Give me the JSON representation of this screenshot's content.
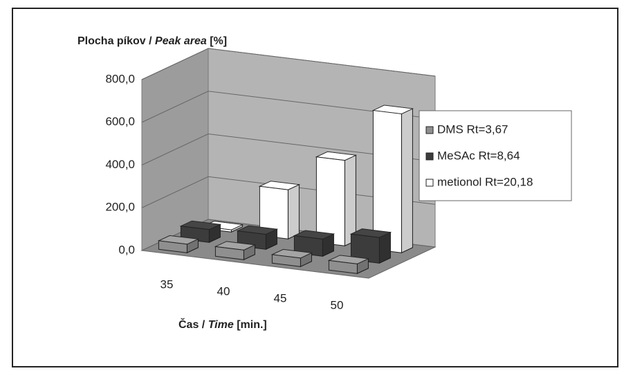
{
  "chart_data": {
    "type": "bar3d",
    "y_label": [
      "Plocha píkov / ",
      "Peak area",
      " [%]"
    ],
    "x_label": [
      "Čas / ",
      "Time",
      " [min.]"
    ],
    "categories": [
      "35",
      "40",
      "45",
      "50"
    ],
    "series": [
      {
        "name": "DMS Rt=3,67",
        "color": "#8f8f8f",
        "values": [
          40,
          45,
          40,
          45
        ]
      },
      {
        "name": "MeSAc Rt=8,64",
        "color": "#3c3c3c",
        "values": [
          60,
          70,
          80,
          120
        ]
      },
      {
        "name": "metionol Rt=20,18",
        "color": "#ffffff",
        "values": [
          10,
          230,
          400,
          650
        ]
      }
    ],
    "ylim": [
      0,
      800
    ],
    "yticks": [
      {
        "value": 0,
        "label": "0,0"
      },
      {
        "value": 200,
        "label": "200,0"
      },
      {
        "value": 400,
        "label": "400,0"
      },
      {
        "value": 600,
        "label": "600,0"
      },
      {
        "value": 800,
        "label": "800,0"
      }
    ],
    "grid": true,
    "legend": "right"
  }
}
